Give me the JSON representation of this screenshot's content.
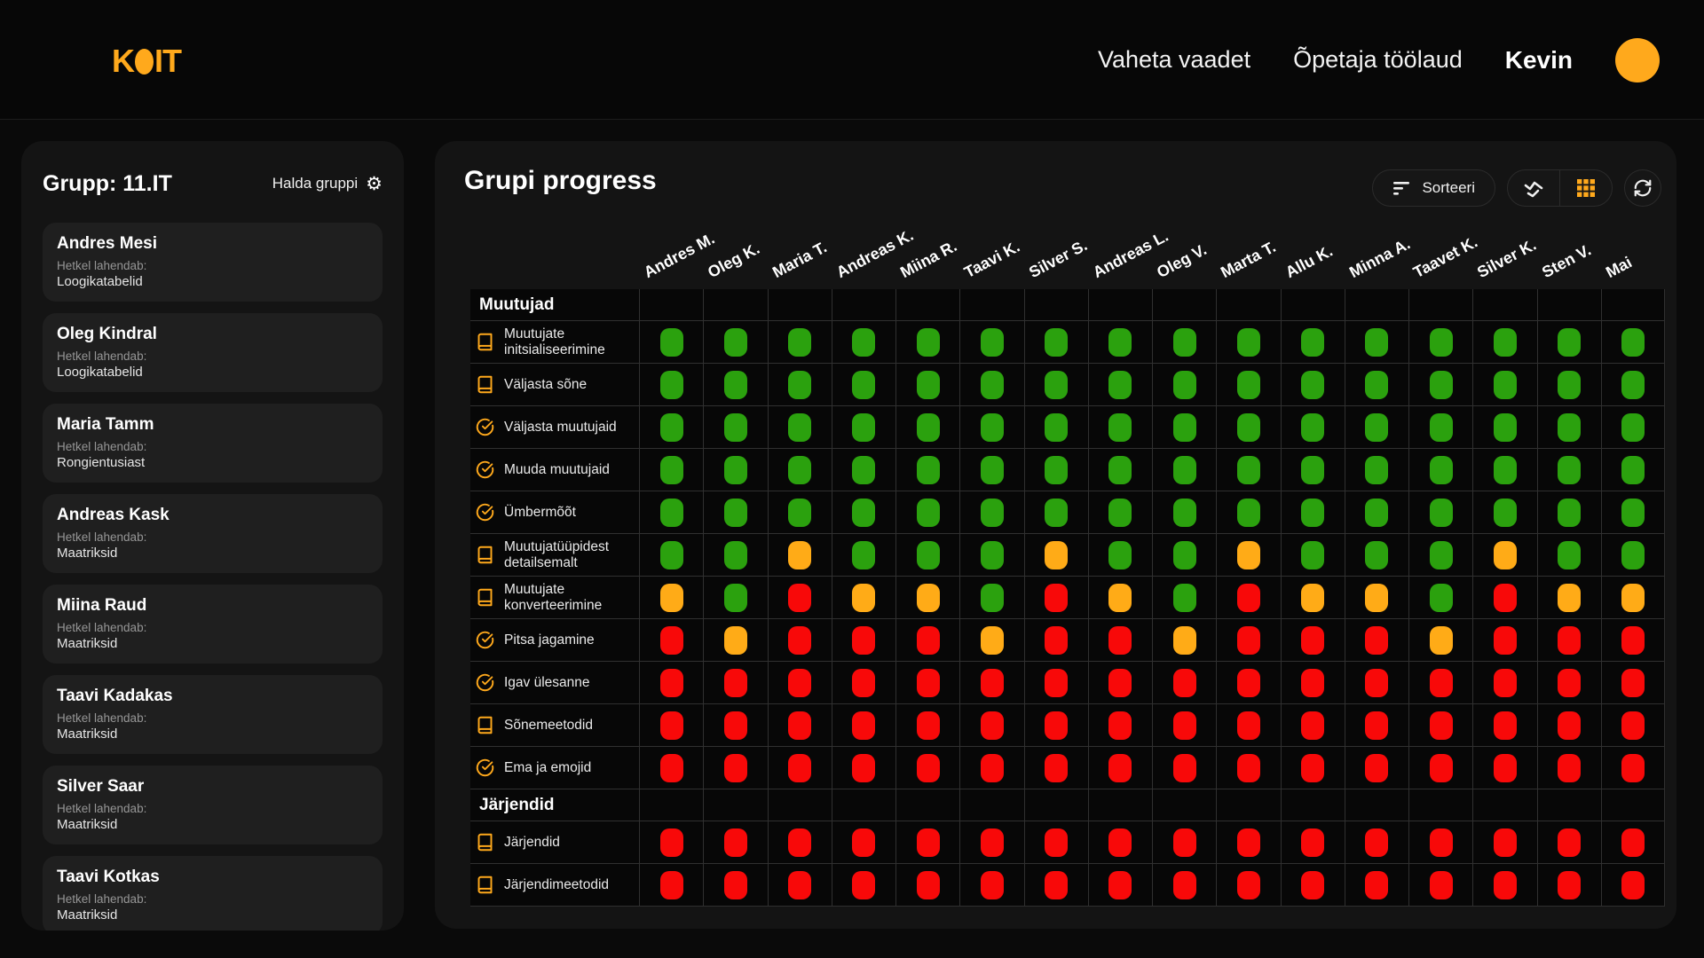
{
  "colors": {
    "accent": "#ffa91c",
    "green": "#2ba10e",
    "orange": "#ffab17",
    "red": "#f80909"
  },
  "header": {
    "logo_k": "K",
    "logo_it": "IT",
    "nav": [
      {
        "label": "Vaheta vaadet"
      },
      {
        "label": "Õpetaja töölaud"
      }
    ],
    "user_name": "Kevin"
  },
  "sidebar": {
    "title": "Grupp: 11.IT",
    "manage_label": "Halda gruppi",
    "solving_label": "Hetkel lahendab:",
    "students": [
      {
        "name": "Andres Mesi",
        "topic": "Loogikatabelid"
      },
      {
        "name": "Oleg Kindral",
        "topic": "Loogikatabelid"
      },
      {
        "name": "Maria Tamm",
        "topic": "Rongientusiast"
      },
      {
        "name": "Andreas Kask",
        "topic": "Maatriksid"
      },
      {
        "name": "Miina Raud",
        "topic": "Maatriksid"
      },
      {
        "name": "Taavi Kadakas",
        "topic": "Maatriksid"
      },
      {
        "name": "Silver Saar",
        "topic": "Maatriksid"
      },
      {
        "name": "Taavi Kotkas",
        "topic": "Maatriksid"
      }
    ]
  },
  "main": {
    "title": "Grupi progress",
    "toolbar": {
      "sort_label": "Sorteeri"
    },
    "matrix": {
      "columns": [
        "Andres M.",
        "Oleg K.",
        "Maria T.",
        "Andreas K.",
        "Miina R.",
        "Taavi K.",
        "Silver S.",
        "Andreas L.",
        "Oleg V.",
        "Marta T.",
        "Allu K.",
        "Minna A.",
        "Taavet K.",
        "Silver K.",
        "Sten V.",
        "Mai"
      ],
      "legend": {
        "g": "green",
        "o": "orange",
        "r": "red"
      },
      "sections": [
        {
          "title": "Muutujad",
          "rows": [
            {
              "label": "Muutujate initsialiseerimine",
              "icon": "book",
              "cells": "gggggggggggggggg"
            },
            {
              "label": "Väljasta sõne",
              "icon": "book",
              "cells": "gggggggggggggggg"
            },
            {
              "label": "Väljasta muutujaid",
              "icon": "check",
              "cells": "gggggggggggggggg"
            },
            {
              "label": "Muuda muutujaid",
              "icon": "check",
              "cells": "gggggggggggggggg"
            },
            {
              "label": "Ümbermõõt",
              "icon": "check",
              "cells": "gggggggggggggggg"
            },
            {
              "label": "Muutujatüüpidest detailsemalt",
              "icon": "book",
              "cells": "ggogggoggogggogg"
            },
            {
              "label": "Muutujate konverteerimine",
              "icon": "book",
              "cells": "ogroogrogroogroo"
            },
            {
              "label": "Pitsa jagamine",
              "icon": "check",
              "cells": "rorrrorrorrrorrr"
            },
            {
              "label": "Igav ülesanne",
              "icon": "check",
              "cells": "rrrrrrrrrrrrrrrr"
            },
            {
              "label": "Sõnemeetodid",
              "icon": "book",
              "cells": "rrrrrrrrrrrrrrrr"
            },
            {
              "label": "Ema ja emojid",
              "icon": "check",
              "cells": "rrrrrrrrrrrrrrrr"
            }
          ]
        },
        {
          "title": "Järjendid",
          "rows": [
            {
              "label": "Järjendid",
              "icon": "book",
              "cells": "rrrrrrrrrrrrrrrr"
            },
            {
              "label": "Järjendimeetodid",
              "icon": "book",
              "cells": "rrrrrrrrrrrrrrrr"
            }
          ]
        }
      ]
    }
  }
}
